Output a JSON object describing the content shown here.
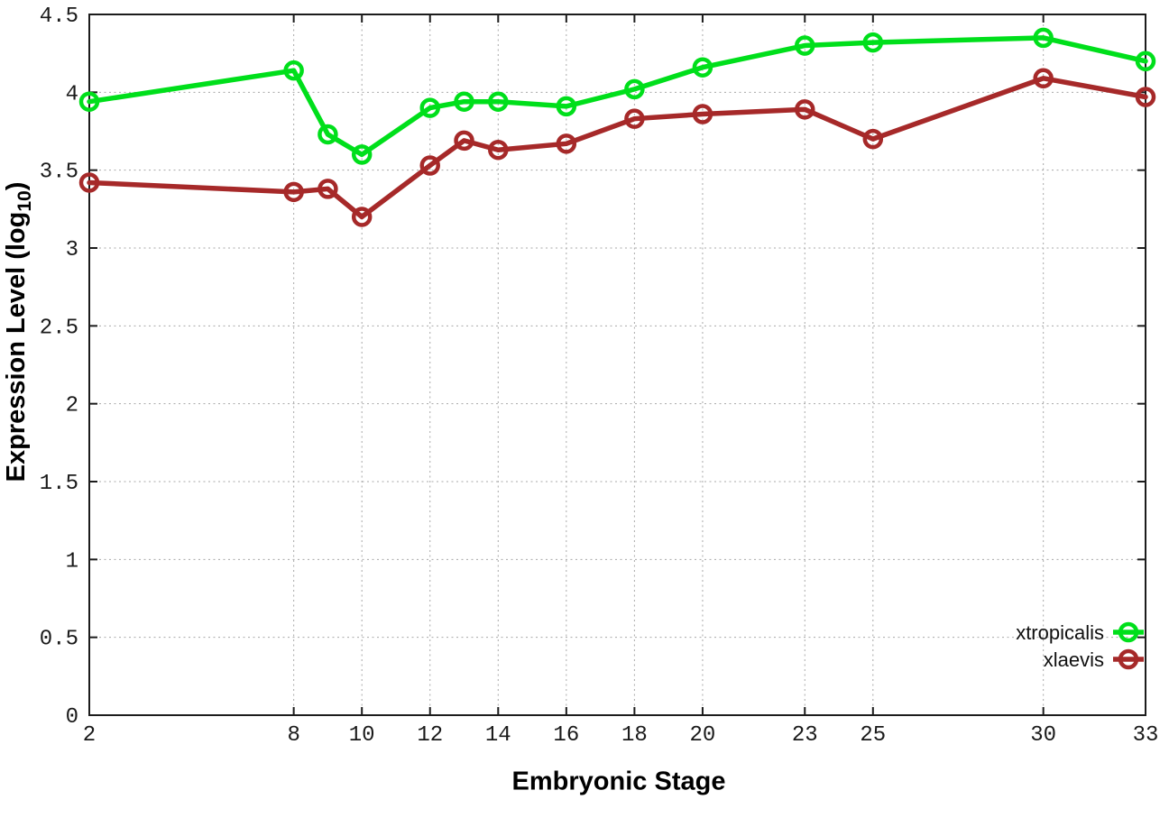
{
  "chart_data": {
    "type": "line",
    "title": "",
    "xlabel": "Embryonic Stage",
    "ylabel": "Expression Level (log10)",
    "ylabel_parts": {
      "prefix": "Expression Level (log",
      "sub": "10",
      "suffix": ")"
    },
    "x": [
      2,
      8,
      9,
      10,
      12,
      13,
      14,
      16,
      18,
      20,
      23,
      25,
      30,
      33
    ],
    "xticks": [
      2,
      8,
      10,
      12,
      14,
      16,
      18,
      20,
      23,
      25,
      30,
      33
    ],
    "yticks": [
      0,
      0.5,
      1,
      1.5,
      2,
      2.5,
      3,
      3.5,
      4,
      4.5
    ],
    "xlim": [
      2,
      33
    ],
    "ylim": [
      0,
      4.5
    ],
    "grid": true,
    "legend_position": "bottom-right",
    "series": [
      {
        "name": "xtropicalis",
        "color": "#00df1b",
        "values": [
          3.94,
          4.14,
          3.73,
          3.6,
          3.9,
          3.94,
          3.94,
          3.91,
          4.02,
          4.16,
          4.3,
          4.32,
          4.35,
          4.2
        ]
      },
      {
        "name": "xlaevis",
        "color": "#a62929",
        "values": [
          3.42,
          3.36,
          3.38,
          3.2,
          3.53,
          3.69,
          3.63,
          3.67,
          3.83,
          3.86,
          3.89,
          3.7,
          4.09,
          3.97
        ]
      }
    ],
    "styles": {
      "frame_color": "#1c1c1c",
      "grid_color": "#a8a8a8",
      "tick_label_color": "#1a1a1a"
    }
  }
}
